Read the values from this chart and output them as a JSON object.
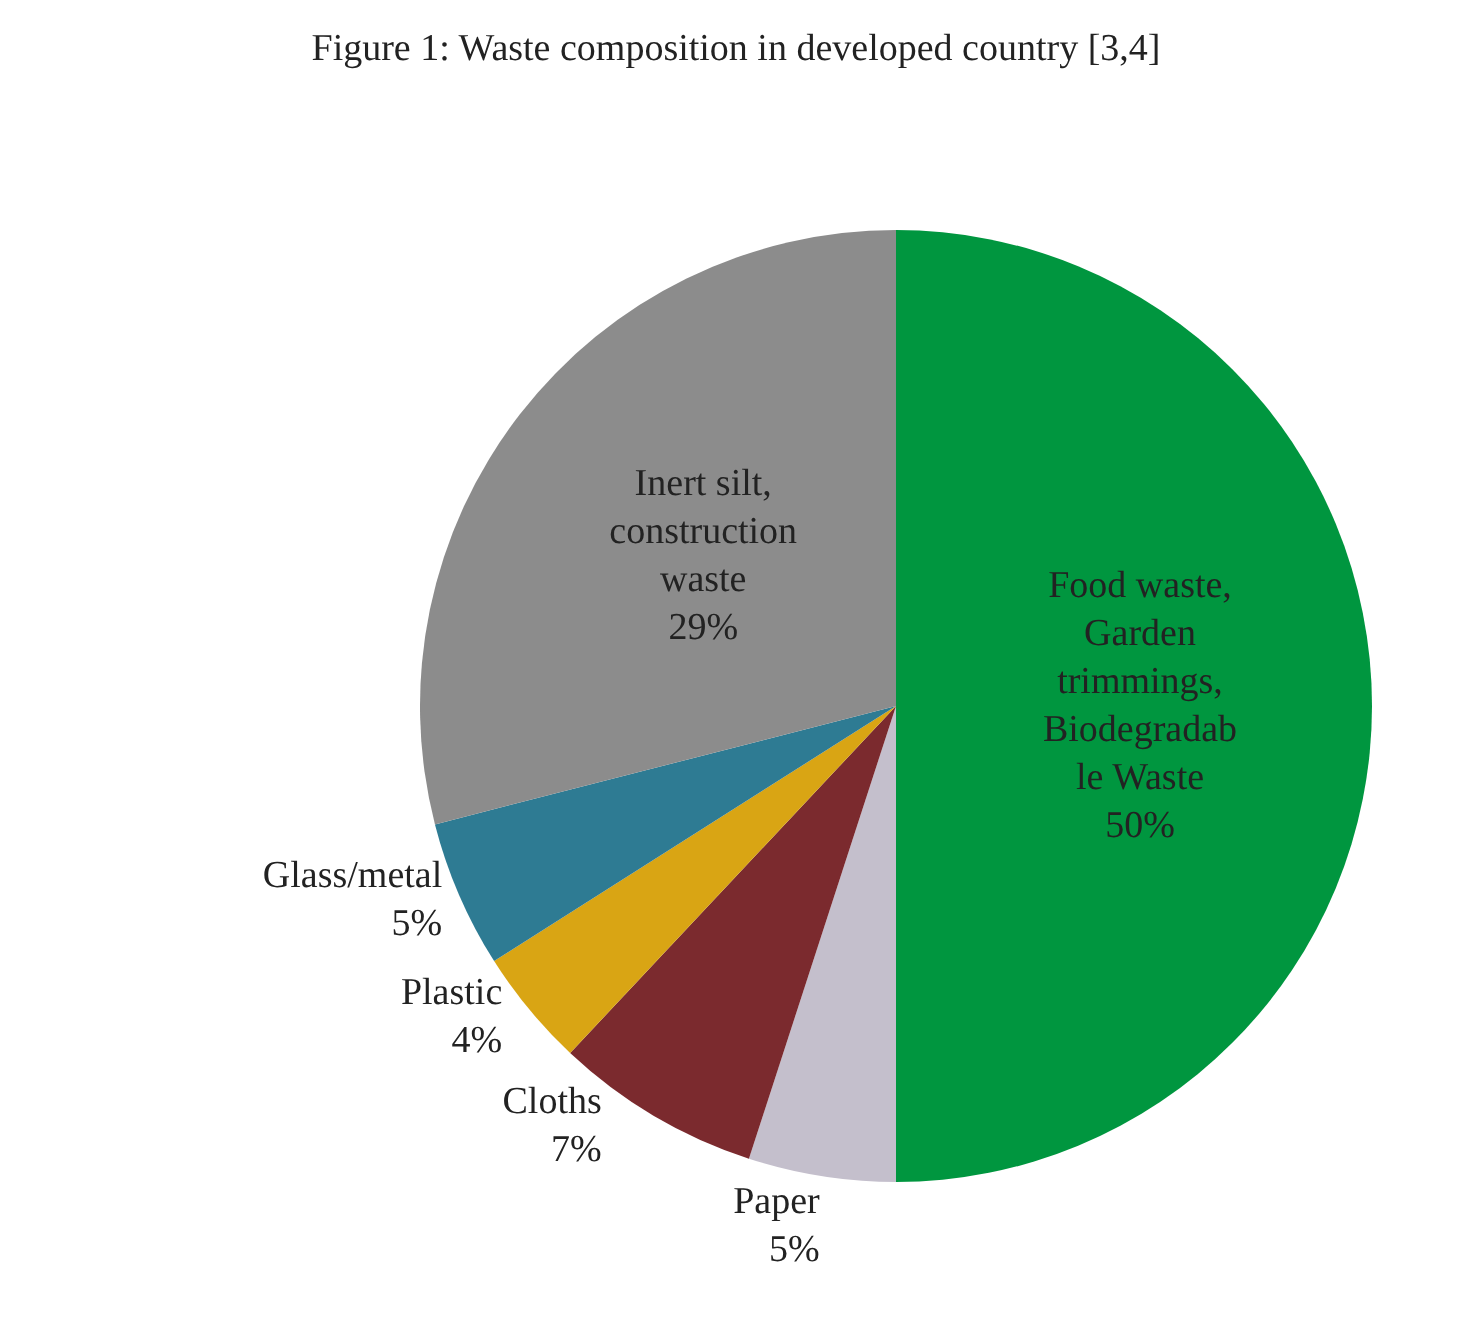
{
  "chart_data": {
    "type": "pie",
    "title": "Figure 1: Waste composition in developed country [3,4]",
    "categories": [
      "Food waste,\nGarden\ntrimmings,\nBiodegradab\nle Waste",
      "Paper",
      "Cloths",
      "Plastic",
      "Glass/metal",
      "Inert silt,\nconstruction\nwaste"
    ],
    "values": [
      50,
      5,
      7,
      4,
      5,
      29
    ],
    "value_labels": [
      "50%",
      "5%",
      "7%",
      "4%",
      "5%",
      "29%"
    ],
    "colors": [
      "#00963f",
      "#c4bfcc",
      "#7b2a2e",
      "#d9a514",
      "#2e7b93",
      "#8c8c8c"
    ],
    "legend": false
  }
}
